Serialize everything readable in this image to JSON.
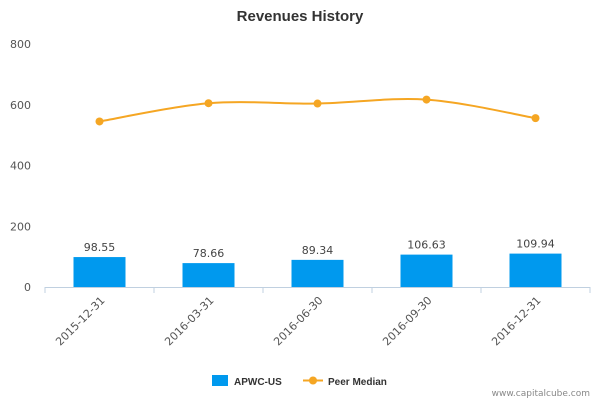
{
  "chart_data": {
    "type": "bar",
    "title": "Revenues History",
    "categories": [
      "2015-12-31",
      "2016-03-31",
      "2016-06-30",
      "2016-09-30",
      "2016-12-31"
    ],
    "series": [
      {
        "name": "APWC-US",
        "type": "bar",
        "color": "#0099ee",
        "values": [
          98.55,
          78.66,
          89.34,
          106.63,
          109.94
        ],
        "labels": [
          "98.55",
          "78.66",
          "89.34",
          "106.63",
          "109.94"
        ]
      },
      {
        "name": "Peer Median",
        "type": "line",
        "color": "#f5a623",
        "values": [
          545,
          605,
          604,
          617,
          556
        ]
      }
    ],
    "ylim": [
      0,
      800
    ],
    "yticks": [
      0,
      200,
      400,
      600,
      800
    ],
    "grid": false,
    "legend": "bottom-center"
  },
  "credit": "www.capitalcube.com"
}
